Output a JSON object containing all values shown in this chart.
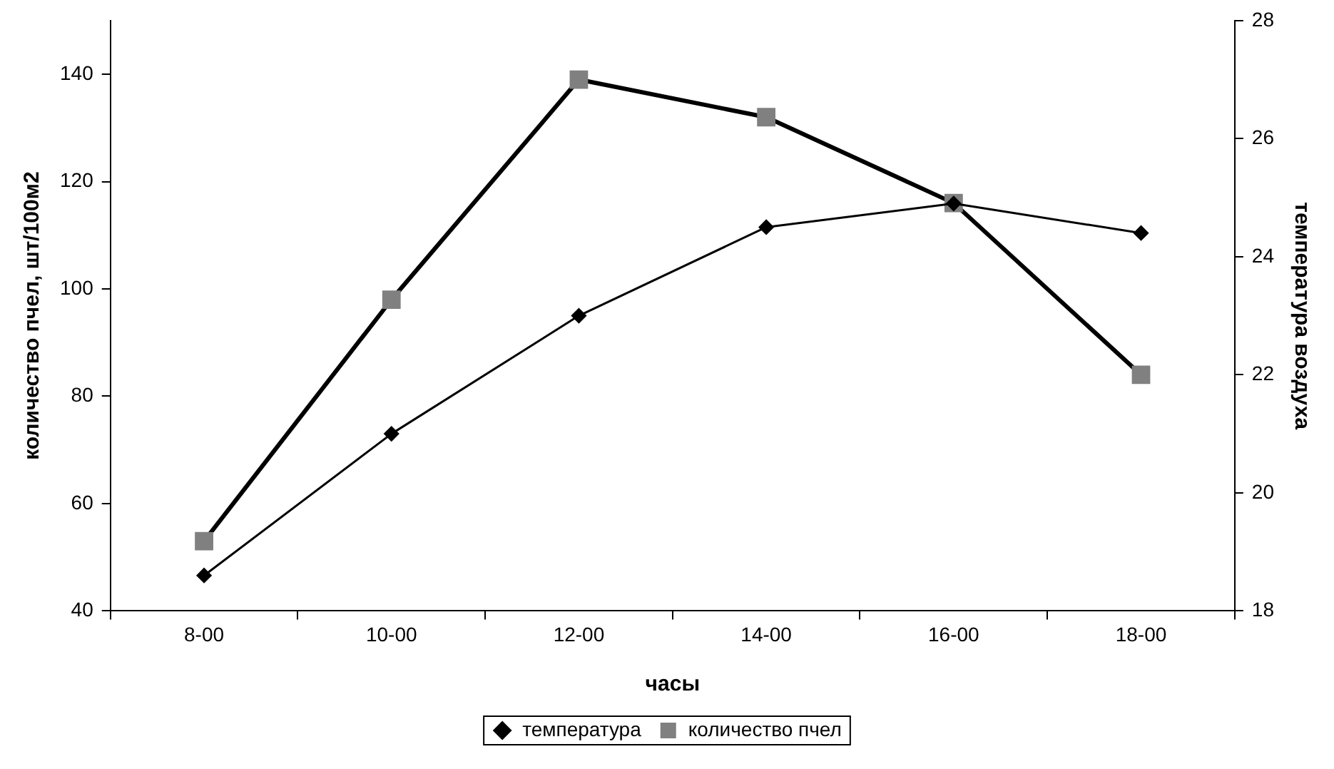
{
  "chart_data": {
    "type": "line",
    "xlabel": "часы",
    "ylabel": "количество пчел, шт/100м2",
    "y2label": "температура воздуха",
    "categories": [
      "8-00",
      "10-00",
      "12-00",
      "14-00",
      "16-00",
      "18-00"
    ],
    "series": [
      {
        "name": "количество пчел",
        "color": "#808080",
        "marker": "square",
        "values": [
          53,
          98,
          139,
          132,
          116,
          84
        ]
      },
      {
        "name": "температура",
        "color": "#000000",
        "marker": "diamond",
        "axis": "y2",
        "values": [
          18.6,
          21.0,
          23.0,
          24.5,
          24.9,
          24.4
        ]
      }
    ],
    "ylim": [
      40,
      150
    ],
    "yticks": [
      40,
      60,
      80,
      100,
      120,
      140
    ],
    "y2lim": [
      18,
      28
    ],
    "y2ticks": [
      18,
      20,
      22,
      24,
      26,
      28
    ],
    "grid": false,
    "legend": "bottom"
  }
}
